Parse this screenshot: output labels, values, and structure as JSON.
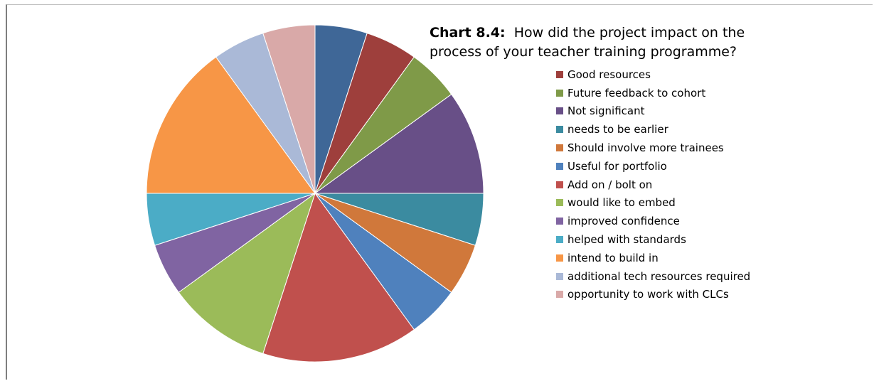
{
  "chart_data": {
    "type": "pie",
    "title_prefix": "Chart 8.4:",
    "title": "How did the project impact on the process of your teacher training programme?",
    "legend_position": "right",
    "slices": [
      {
        "label": "",
        "value": 1,
        "color": "#3f6797"
      },
      {
        "label": "Good resources",
        "value": 1,
        "color": "#9e3f3c"
      },
      {
        "label": "Future feedback to cohort",
        "value": 1,
        "color": "#7f9a48"
      },
      {
        "label": "Not significant",
        "value": 2,
        "color": "#684f87"
      },
      {
        "label": "needs to be earlier",
        "value": 1,
        "color": "#3b8ba0"
      },
      {
        "label": "Should involve more trainees",
        "value": 1,
        "color": "#d0783b"
      },
      {
        "label": "Useful for portfolio",
        "value": 1,
        "color": "#4f81bd"
      },
      {
        "label": "Add on / bolt on",
        "value": 3,
        "color": "#c0504d"
      },
      {
        "label": "would like to embed",
        "value": 2,
        "color": "#9bbb59"
      },
      {
        "label": "improved confidence",
        "value": 1,
        "color": "#8064a2"
      },
      {
        "label": "helped with standards",
        "value": 1,
        "color": "#4bacc6"
      },
      {
        "label": "intend to build in",
        "value": 3,
        "color": "#f79646"
      },
      {
        "label": "additional tech resources required",
        "value": 1,
        "color": "#aab9d7"
      },
      {
        "label": "opportunity to work with CLCs",
        "value": 1,
        "color": "#d9a9a8"
      }
    ]
  }
}
